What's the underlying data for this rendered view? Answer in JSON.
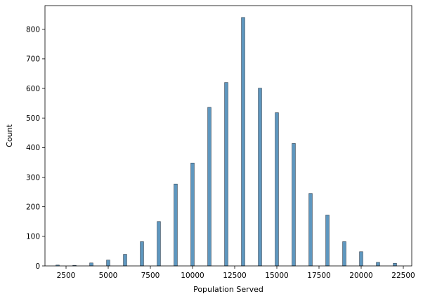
{
  "chart_data": {
    "type": "bar",
    "title": "",
    "xlabel": "Population Served",
    "ylabel": "Count",
    "xlim": [
      1250,
      23000
    ],
    "ylim": [
      0,
      880
    ],
    "x_ticks": [
      2500,
      5000,
      7500,
      10000,
      12500,
      15000,
      17500,
      20000,
      22500
    ],
    "y_ticks": [
      0,
      100,
      200,
      300,
      400,
      500,
      600,
      700,
      800
    ],
    "bin_width": 200,
    "grid": false,
    "legend": "none",
    "bar_color": "#4c8cb8",
    "series": [
      {
        "x": [
          2000,
          3000,
          4000,
          5000,
          6000,
          7000,
          8000,
          9000,
          10000,
          11000,
          12000,
          13000,
          14000,
          15000,
          16000,
          17000,
          18000,
          19000,
          20000,
          21000,
          22000
        ],
        "values": [
          3,
          2,
          10,
          20,
          39,
          82,
          150,
          277,
          348,
          536,
          620,
          840,
          601,
          518,
          414,
          245,
          172,
          82,
          48,
          12,
          9
        ]
      }
    ]
  }
}
